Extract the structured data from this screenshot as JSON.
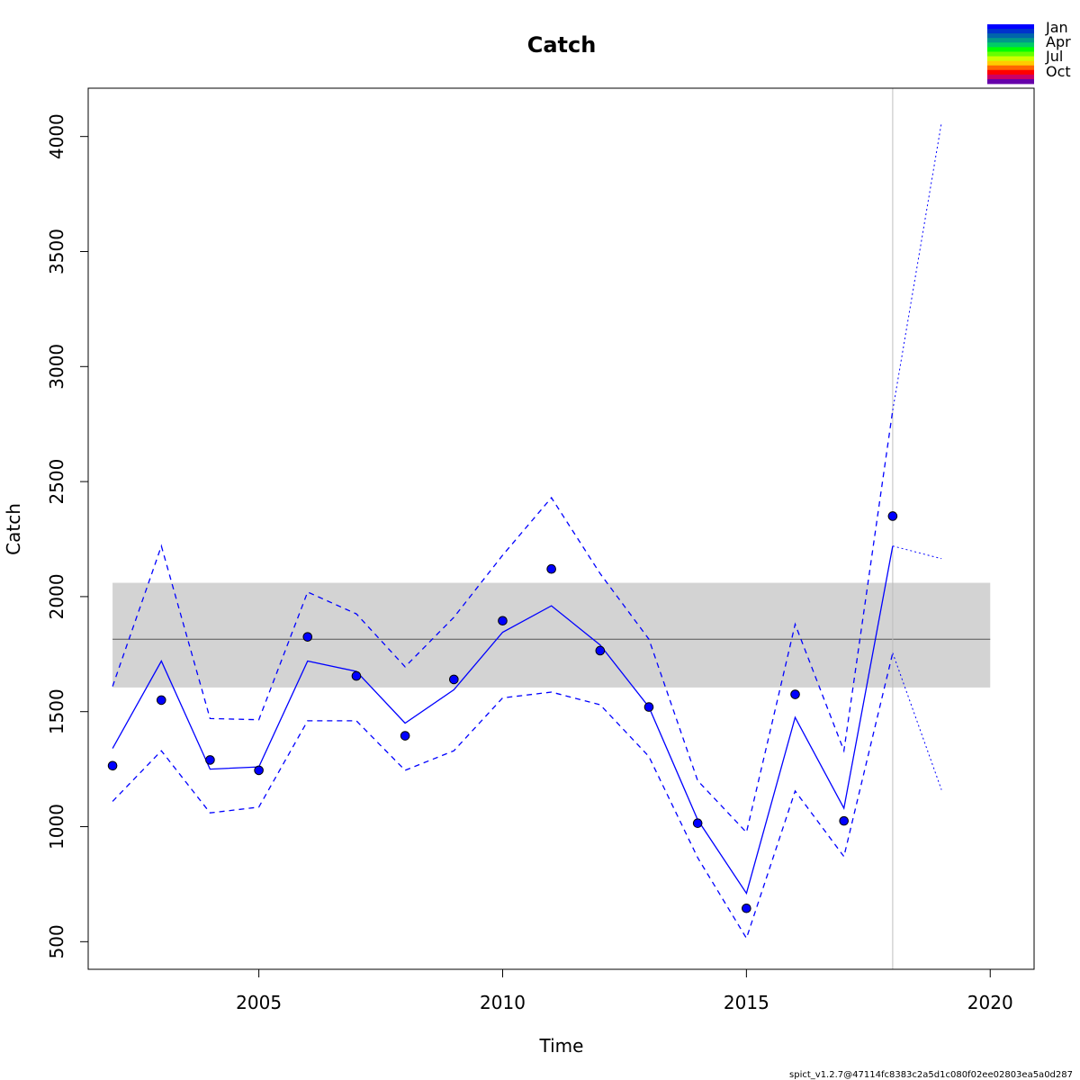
{
  "chart_data": {
    "type": "line",
    "title": "Catch",
    "xlabel": "Time",
    "ylabel": "Catch",
    "xlim": [
      2001.5,
      2020.9
    ],
    "ylim": [
      380,
      4210
    ],
    "x_ticks": [
      2005,
      2010,
      2015,
      2020
    ],
    "y_ticks": [
      500,
      1000,
      1500,
      2000,
      2500,
      3000,
      3500,
      4000
    ],
    "observed": {
      "x": [
        2002,
        2003,
        2004,
        2005,
        2006,
        2007,
        2008,
        2009,
        2010,
        2011,
        2012,
        2013,
        2014,
        2015,
        2016,
        2017,
        2018
      ],
      "y": [
        1265,
        1550,
        1290,
        1245,
        1825,
        1655,
        1395,
        1640,
        1895,
        2120,
        1765,
        1520,
        1015,
        645,
        1575,
        1025,
        2350
      ]
    },
    "series": [
      {
        "x": [
          2002,
          2003,
          2004,
          2005,
          2006,
          2007,
          2008,
          2009,
          2010,
          2011,
          2012,
          2013,
          2014,
          2015,
          2016,
          2017,
          2018
        ],
        "y": [
          1340,
          1720,
          1250,
          1260,
          1720,
          1675,
          1450,
          1595,
          1845,
          1960,
          1790,
          1520,
          1030,
          710,
          1475,
          1080,
          2220
        ],
        "style": "solid"
      },
      {
        "x": [
          2002,
          2003,
          2004,
          2005,
          2006,
          2007,
          2008,
          2009,
          2010,
          2011,
          2012,
          2013,
          2014,
          2015,
          2016,
          2017,
          2018
        ],
        "y": [
          1610,
          2220,
          1470,
          1465,
          2020,
          1925,
          1695,
          1910,
          2180,
          2430,
          2100,
          1815,
          1200,
          975,
          1880,
          1330,
          2810
        ],
        "style": "dashed"
      },
      {
        "x": [
          2002,
          2003,
          2004,
          2005,
          2006,
          2007,
          2008,
          2009,
          2010,
          2011,
          2012,
          2013,
          2014,
          2015,
          2016,
          2017,
          2018
        ],
        "y": [
          1110,
          1330,
          1060,
          1085,
          1460,
          1460,
          1245,
          1330,
          1560,
          1585,
          1530,
          1305,
          865,
          515,
          1155,
          870,
          1755
        ],
        "style": "dashed"
      },
      {
        "x": [
          2018,
          2019
        ],
        "y": [
          2220,
          2165
        ],
        "style": "dotted"
      },
      {
        "x": [
          2018,
          2019
        ],
        "y": [
          2810,
          4060
        ],
        "style": "dotted"
      },
      {
        "x": [
          2018,
          2019
        ],
        "y": [
          1755,
          1160
        ],
        "style": "dotted"
      }
    ],
    "band": {
      "x": [
        2002,
        2020
      ],
      "ymin": 1605,
      "ymax": 2060,
      "mean": 1815
    },
    "vline_x": 2018,
    "legend": {
      "placement": "top-right",
      "labels": [
        "Jan",
        "Apr",
        "Jul",
        "Oct"
      ],
      "colors": [
        "#0000ff",
        "#0033cc",
        "#0066aa",
        "#009988",
        "#00cc66",
        "#00ff00",
        "#66ff00",
        "#ccff00",
        "#ffcc00",
        "#ff6600",
        "#ff0000",
        "#cc0066",
        "#6600aa"
      ]
    },
    "colors": {
      "line": "#0000ff",
      "band": "#d3d3d3",
      "mean": "#555555",
      "vline": "#bebebe"
    }
  },
  "footer": "spict_v1.2.7@47114fc8383c2a5d1c080f02ee02803ea5a0d287"
}
